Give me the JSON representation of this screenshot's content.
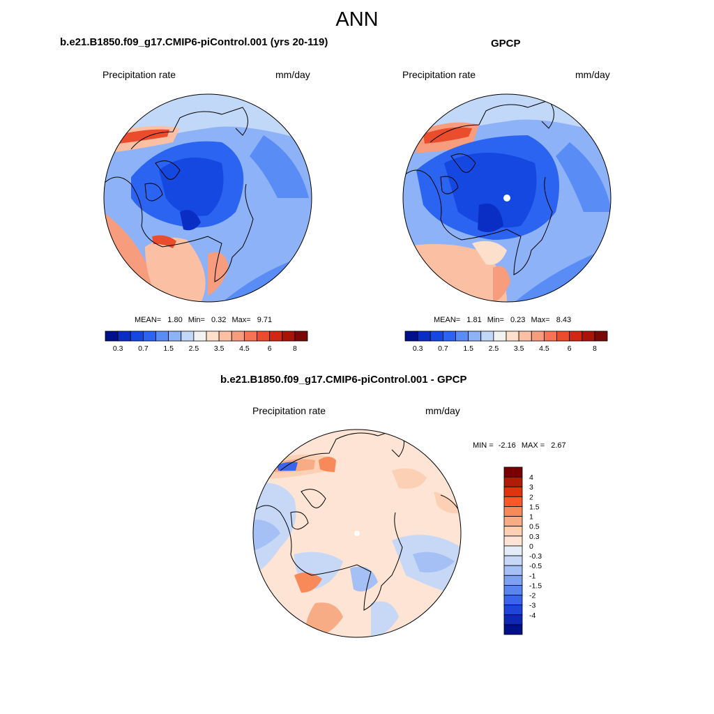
{
  "title": "ANN",
  "panels": [
    {
      "title": "b.e21.B1850.f09_g17.CMIP6-piControl.001 (yrs 20-119)",
      "left_label": "Precipitation rate",
      "right_label": "mm/day",
      "stats": {
        "mean_label": "MEAN=",
        "mean": "1.80",
        "min_label": "Min=",
        "min": "0.32",
        "max_label": "Max=",
        "max": "9.71"
      }
    },
    {
      "title": "GPCP",
      "left_label": "Precipitation rate",
      "right_label": "mm/day",
      "stats": {
        "mean_label": "MEAN=",
        "mean": "1.81",
        "min_label": "Min=",
        "min": "0.23",
        "max_label": "Max=",
        "max": "8.43"
      }
    },
    {
      "title": "b.e21.B1850.f09_g17.CMIP6-piControl.001 - GPCP",
      "left_label": "Precipitation rate",
      "right_label": "mm/day",
      "range": {
        "min_label": "MIN =",
        "min": "-2.16",
        "max_label": "MAX =",
        "max": "2.67"
      }
    }
  ],
  "abs_colorbar": {
    "colors": [
      "#00108a",
      "#0a2ec4",
      "#1448e0",
      "#2a64f0",
      "#5a8cf6",
      "#8eb2f8",
      "#c2d8f8",
      "#f2f2f2",
      "#fde0cc",
      "#fbc0a4",
      "#f79c7c",
      "#f47454",
      "#ea4c2c",
      "#d02812",
      "#a81408",
      "#7a0806"
    ],
    "labels": [
      "0.3",
      "0.7",
      "1.5",
      "2.5",
      "3.5",
      "4.5",
      "6",
      "8"
    ]
  },
  "diff_colorbar": {
    "colors": [
      "#7a0000",
      "#b01c08",
      "#e0340e",
      "#f85a26",
      "#f88a5a",
      "#f8ac86",
      "#fbd0b4",
      "#fde4d4",
      "#e4ecf8",
      "#c6d8f6",
      "#a4c0f4",
      "#7ea2f2",
      "#5a84ee",
      "#3a64ea",
      "#1f44da",
      "#0e28b4",
      "#00108a"
    ],
    "labels": [
      "4",
      "3",
      "2",
      "1.5",
      "1",
      "0.5",
      "0.3",
      "0",
      "-0.3",
      "-0.5",
      "-1",
      "-1.5",
      "-2",
      "-3",
      "-4"
    ]
  }
}
